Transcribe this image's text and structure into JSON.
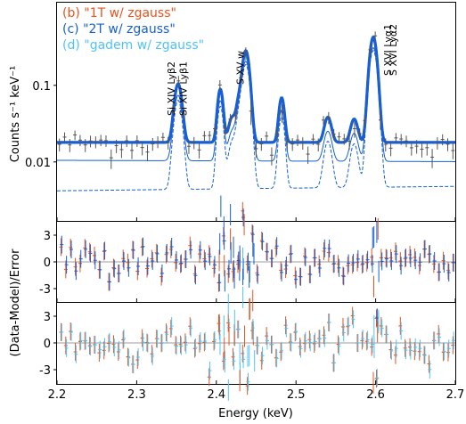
{
  "legend": [
    {
      "label": "(b) \"1T w/ zgauss\"",
      "color": "#e8531e"
    },
    {
      "label": "(c) \"2T w/ zgauss\"",
      "color": "#1560d6"
    },
    {
      "label": "(d) \"gadem w/ zgauss\"",
      "color": "#4fc3f7"
    }
  ],
  "chart_data": [
    {
      "type": "line",
      "panel": "spectrum",
      "xlabel": "Energy (keV)",
      "ylabel": "Counts s⁻¹ keV⁻¹",
      "xlim": [
        2.2,
        2.7
      ],
      "ylim": [
        0.0017,
        1.2
      ],
      "yscale": "log",
      "yticks": [
        0.01,
        0.1
      ],
      "ytick_labels": [
        "0.01",
        "0.1"
      ],
      "line_annotations": [
        {
          "label": "Si XIV Lyβ2",
          "energy": 2.351
        },
        {
          "label": "Si XIV Lyβ1",
          "energy": 2.356
        },
        {
          "label": "S XV w",
          "energy": 2.4375
        },
        {
          "label": "S XVI Lyα2",
          "energy": 2.6196
        },
        {
          "label": "S XVI Lyα1",
          "energy": 2.6226
        }
      ],
      "series": [
        {
          "name": "(b) \"1T w/ zgauss\"",
          "color": "#e8531e"
        },
        {
          "name": "(c) \"2T w/ zgauss\"",
          "color": "#1560d6"
        },
        {
          "name": "(d) \"gadem w/ zgauss\"",
          "color": "#4fc3f7"
        }
      ],
      "continuum": 0.018,
      "lines_model": [
        {
          "e": 2.352,
          "peak": 0.085,
          "w": 0.004
        },
        {
          "e": 2.405,
          "peak": 0.07,
          "w": 0.003
        },
        {
          "e": 2.42,
          "peak": 0.02,
          "w": 0.004
        },
        {
          "e": 2.428,
          "peak": 0.035,
          "w": 0.003
        },
        {
          "e": 2.437,
          "peak": 0.26,
          "w": 0.004
        },
        {
          "e": 2.482,
          "peak": 0.05,
          "w": 0.003
        },
        {
          "e": 2.54,
          "peak": 0.02,
          "w": 0.004
        },
        {
          "e": 2.573,
          "peak": 0.018,
          "w": 0.004
        },
        {
          "e": 2.597,
          "peak": 0.4,
          "w": 0.004
        }
      ]
    },
    {
      "type": "scatter",
      "panel": "residual_c",
      "ylabel": "(Data-Model)/Error",
      "xlim": [
        2.2,
        2.7
      ],
      "ylim": [
        -4.8,
        4.8
      ],
      "yticks": [
        -3,
        0,
        3
      ],
      "ytick_labels": [
        "-3",
        "0",
        "3"
      ]
    },
    {
      "type": "scatter",
      "panel": "residual_d",
      "xlim": [
        2.2,
        2.7
      ],
      "ylim": [
        -4.8,
        4.8
      ],
      "yticks": [
        -3,
        0,
        3
      ],
      "ytick_labels": [
        "-3",
        "0",
        "3"
      ],
      "xticks": [
        2.2,
        2.3,
        2.4,
        2.5,
        2.6,
        2.7
      ],
      "xtick_labels": [
        "2.2",
        "2.3",
        "2.4",
        "2.5",
        "2.6",
        "2.7"
      ]
    }
  ]
}
